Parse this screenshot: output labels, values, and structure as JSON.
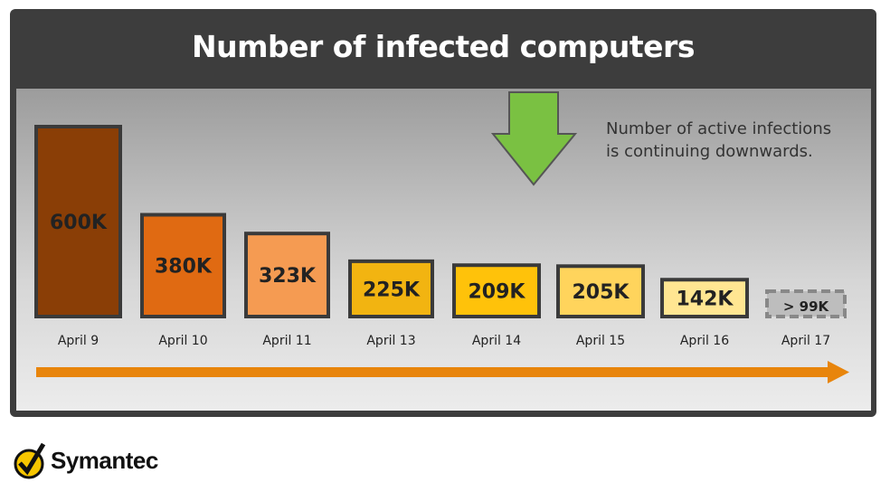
{
  "chart_data": {
    "type": "bar",
    "title": "Number of infected computers",
    "categories": [
      "April 9",
      "April 10",
      "April 11",
      "April 13",
      "April 14",
      "April 15",
      "April 16",
      "April 17"
    ],
    "values": [
      600000,
      380000,
      323000,
      225000,
      209000,
      205000,
      142000,
      99000
    ],
    "data_labels": [
      "600K",
      "380K",
      "323K",
      "225K",
      "209K",
      "205K",
      "142K",
      "> 99K"
    ],
    "colors": [
      "#8a3e06",
      "#e06a12",
      "#f59b52",
      "#f2b411",
      "#ffc20a",
      "#ffd45c",
      "#ffe692",
      "#bdbdbd"
    ],
    "annotation": "Number of active infections is continuing downwards.",
    "annotation_lines": [
      "Number of active infections",
      "is continuing downwards."
    ],
    "xlabel": "",
    "ylabel": "",
    "grid": false
  },
  "brand": {
    "name": "Symantec",
    "mark": "."
  }
}
